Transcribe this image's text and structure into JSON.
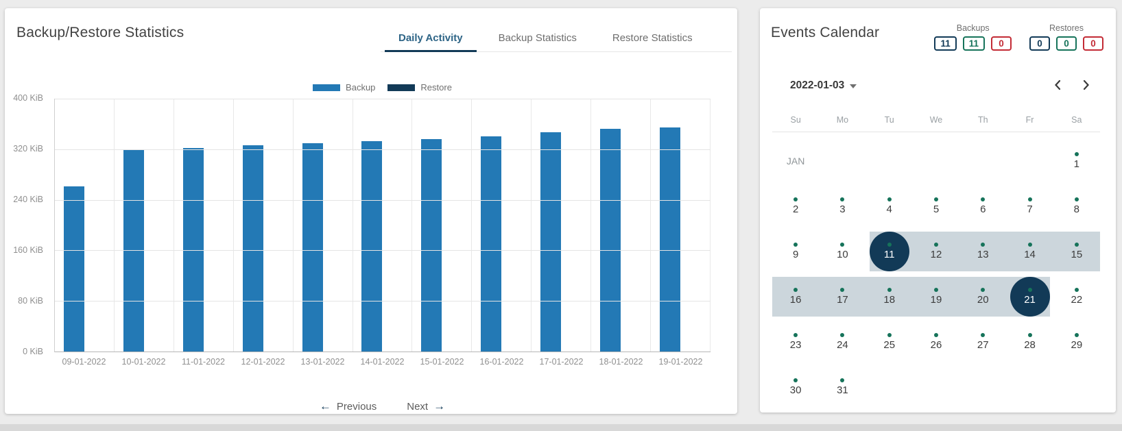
{
  "colors": {
    "bar_blue": "#2379b5",
    "navy": "#123a57",
    "green": "#16735a",
    "red": "#c32b35",
    "band": "#ccd6dc"
  },
  "left_panel": {
    "title": "Backup/Restore Statistics",
    "tabs": [
      {
        "label": "Daily Activity",
        "active": true
      },
      {
        "label": "Backup Statistics",
        "active": false
      },
      {
        "label": "Restore Statistics",
        "active": false
      }
    ],
    "nav": {
      "previous_label": "Previous",
      "next_label": "Next"
    }
  },
  "chart_data": {
    "type": "bar",
    "title": "Daily Activity",
    "unit": "KiB",
    "ylim": [
      0,
      400
    ],
    "y_ticks": [
      "400 KiB",
      "320 KiB",
      "240 KiB",
      "160 KiB",
      "80 KiB",
      "0 KiB"
    ],
    "grid": true,
    "legend_position": "top",
    "categories": [
      "09-01-2022",
      "10-01-2022",
      "11-01-2022",
      "12-01-2022",
      "13-01-2022",
      "14-01-2022",
      "15-01-2022",
      "16-01-2022",
      "17-01-2022",
      "18-01-2022",
      "19-01-2022"
    ],
    "series": [
      {
        "name": "Backup",
        "color": "#2379b5",
        "values": [
          261,
          319,
          322,
          326,
          330,
          333,
          336,
          340,
          347,
          352,
          355
        ]
      },
      {
        "name": "Restore",
        "color": "#123a57",
        "values": [
          0,
          0,
          0,
          0,
          0,
          0,
          0,
          0,
          0,
          0,
          0
        ]
      }
    ]
  },
  "right_panel": {
    "title": "Events Calendar",
    "counters": [
      {
        "label": "Backups",
        "badges": [
          {
            "value": "11",
            "color": "navy"
          },
          {
            "value": "11",
            "color": "green"
          },
          {
            "value": "0",
            "color": "red"
          }
        ]
      },
      {
        "label": "Restores",
        "badges": [
          {
            "value": "0",
            "color": "navy"
          },
          {
            "value": "0",
            "color": "green"
          },
          {
            "value": "0",
            "color": "red"
          }
        ]
      }
    ],
    "date_selector": {
      "value": "2022-01-03"
    },
    "calendar": {
      "month_label": "JAN",
      "weekdays": [
        "Su",
        "Mo",
        "Tu",
        "We",
        "Th",
        "Fr",
        "Sa"
      ],
      "weeks": [
        [
          null,
          null,
          null,
          null,
          null,
          null,
          1
        ],
        [
          2,
          3,
          4,
          5,
          6,
          7,
          8
        ],
        [
          9,
          10,
          11,
          12,
          13,
          14,
          15
        ],
        [
          16,
          17,
          18,
          19,
          20,
          21,
          22
        ],
        [
          23,
          24,
          25,
          26,
          27,
          28,
          29
        ],
        [
          30,
          31,
          null,
          null,
          null,
          null,
          null
        ]
      ],
      "event_days": [
        1,
        2,
        3,
        4,
        5,
        6,
        7,
        8,
        9,
        10,
        11,
        12,
        13,
        14,
        15,
        16,
        17,
        18,
        19,
        20,
        21,
        22,
        23,
        24,
        25,
        26,
        27,
        28,
        29,
        30,
        31
      ],
      "selected_days": [
        11,
        21
      ],
      "range": {
        "start": 11,
        "end": 21
      }
    }
  }
}
